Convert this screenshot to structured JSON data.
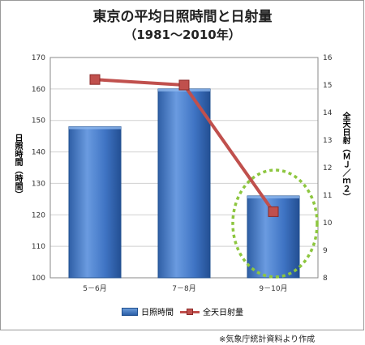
{
  "title": "東京の平均日照時間と日射量",
  "subtitle": "（1981〜2010年）",
  "source_note": "※気象庁統計資料より作成",
  "chart_data": {
    "type": "bar",
    "title": "東京の平均日照時間と日射量",
    "subtitle": "（1981〜2010年）",
    "categories": [
      "5－6月",
      "7－8月",
      "9－10月"
    ],
    "series": [
      {
        "name": "日照時間",
        "type": "bar",
        "axis": "left",
        "values": [
          148,
          160,
          126
        ],
        "color": "#3a6fbf"
      },
      {
        "name": "全天日射量",
        "type": "line",
        "axis": "right",
        "values": [
          15.2,
          15.0,
          10.4
        ],
        "color": "#c0504d"
      }
    ],
    "ylabel": "日照時間（時間）",
    "y2label": "全天日射（ＭＪ／ｍ２）",
    "ylim": [
      100,
      170
    ],
    "y2lim": [
      8,
      16
    ],
    "yticks": [
      100,
      110,
      120,
      130,
      140,
      150,
      160,
      170
    ],
    "y2ticks": [
      8,
      9,
      10,
      11,
      12,
      13,
      14,
      15,
      16
    ],
    "grid": true,
    "legend_position": "bottom",
    "highlight": {
      "category": "9－10月",
      "style": "dashed ellipse",
      "color": "#8dc63f"
    }
  }
}
